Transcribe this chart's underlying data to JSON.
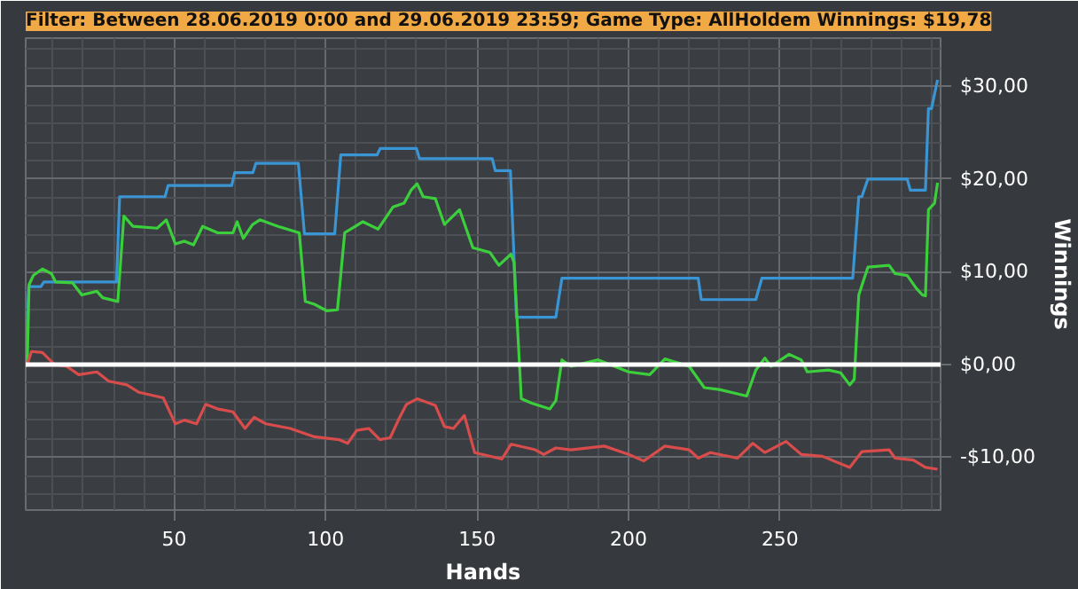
{
  "chart_data": {
    "type": "line",
    "title": "Filter: Between 28.06.2019 0:00 and 29.06.2019 23:59; Game Type: AllHoldem Winnings: $19,78",
    "xlabel": "Hands",
    "ylabel": "Winnings",
    "xlim": [
      1,
      303
    ],
    "xticks": [
      50,
      100,
      150,
      200,
      250
    ],
    "ylim": [
      -15.7,
      35.2
    ],
    "yticks": [
      {
        "value": -10,
        "label": "-$10,00"
      },
      {
        "value": 0,
        "label": "$0,00"
      },
      {
        "value": 10,
        "label": "$10,00"
      },
      {
        "value": 20,
        "label": "$20,00"
      },
      {
        "value": 30,
        "label": "$30,00"
      }
    ],
    "grid": true,
    "ref_lines": [
      {
        "axis": "y",
        "value": 0,
        "color": "#ffffff"
      }
    ],
    "series": [
      {
        "color": "#3a95d5",
        "x": [
          1,
          2,
          6,
          7,
          31,
          32,
          47,
          48,
          69,
          70,
          76,
          77,
          91,
          93,
          103,
          105,
          117,
          118,
          130,
          131,
          155,
          156,
          161,
          163,
          176,
          178,
          223,
          224,
          242,
          244,
          274,
          276,
          277,
          279,
          292,
          293,
          298,
          299,
          300,
          302
        ],
        "values": [
          0,
          8.4,
          8.4,
          8.9,
          8.9,
          18.1,
          18.1,
          19.3,
          19.3,
          20.7,
          20.7,
          21.7,
          21.7,
          14.1,
          14.1,
          22.6,
          22.6,
          23.3,
          23.3,
          22.2,
          22.2,
          20.9,
          20.9,
          5.1,
          5.1,
          9.3,
          9.3,
          7.0,
          7.0,
          9.3,
          9.3,
          18.1,
          18.1,
          20.0,
          20.0,
          18.8,
          18.8,
          27.6,
          27.6,
          30.7
        ]
      },
      {
        "color": "#3ccf3c",
        "x": [
          1.5,
          2.1,
          3.5,
          6.5,
          9.5,
          10.9,
          16.5,
          19.5,
          24.5,
          26.4,
          31.4,
          33.4,
          36.4,
          44.4,
          47.4,
          50.4,
          53.4,
          56.4,
          59.4,
          64.4,
          69.4,
          70.8,
          72.8,
          75.9,
          78.3,
          84.3,
          91.3,
          93.3,
          96.3,
          100.3,
          103.9,
          106.3,
          112.3,
          117.3,
          122.3,
          125.9,
          128.2,
          130.2,
          132.2,
          136.2,
          139.2,
          144.2,
          148.6,
          154.2,
          157.2,
          161.2,
          162.2,
          164.6,
          168.2,
          174,
          176,
          178,
          181,
          190,
          200,
          207,
          212,
          220,
          225,
          230,
          239,
          242,
          245,
          247,
          253,
          257,
          259,
          266,
          270,
          273,
          274.5,
          276,
          279,
          286,
          288,
          292,
          295,
          297,
          298,
          299,
          301,
          302
        ],
        "values": [
          0,
          8.6,
          9.6,
          10.3,
          9.8,
          8.9,
          8.8,
          7.5,
          7.9,
          7.2,
          6.8,
          16.0,
          14.9,
          14.7,
          15.6,
          13.0,
          13.3,
          12.9,
          14.9,
          14.2,
          14.2,
          15.4,
          13.6,
          15.1,
          15.6,
          14.9,
          14.2,
          6.8,
          6.5,
          5.8,
          5.9,
          14.2,
          15.4,
          14.6,
          17.0,
          17.4,
          18.8,
          19.5,
          18.1,
          17.9,
          15.1,
          16.7,
          12.6,
          12.1,
          10.7,
          11.9,
          11.0,
          -3.7,
          -4.2,
          -4.8,
          -3.9,
          0.5,
          -0.2,
          0.5,
          -0.8,
          -1.1,
          0.6,
          -0.2,
          -2.5,
          -2.7,
          -3.4,
          -0.6,
          0.7,
          -0.2,
          1.1,
          0.5,
          -0.8,
          -0.6,
          -0.9,
          -2.2,
          -1.6,
          7.5,
          10.5,
          10.7,
          9.8,
          9.6,
          8.2,
          7.5,
          7.4,
          16.7,
          17.4,
          19.6
        ]
      },
      {
        "color": "#d94c4c",
        "x": [
          1.5,
          2.9,
          6.5,
          10.5,
          14.5,
          18.5,
          24.5,
          28.4,
          34.4,
          38.4,
          46.4,
          50.4,
          53.4,
          57.4,
          60.4,
          64.4,
          69.4,
          73.4,
          76.4,
          80.3,
          88.3,
          96.3,
          104.3,
          107.3,
          110.3,
          114.3,
          117.9,
          121.3,
          124.3,
          126.7,
          130.2,
          136.2,
          139.2,
          142.2,
          145.8,
          149.2,
          158.2,
          161.2,
          169.2,
          172,
          176,
          181,
          192,
          200,
          205,
          212,
          220,
          223,
          227,
          236,
          241,
          245,
          252,
          257,
          264,
          273,
          277,
          286,
          288,
          294,
          298,
          302
        ],
        "values": [
          0,
          1.4,
          1.3,
          0,
          -0.2,
          -1.1,
          -0.8,
          -1.8,
          -2.2,
          -3.0,
          -3.6,
          -6.4,
          -6.0,
          -6.4,
          -4.3,
          -4.8,
          -5.1,
          -6.9,
          -5.7,
          -6.4,
          -6.9,
          -7.8,
          -8.1,
          -8.5,
          -7.1,
          -6.9,
          -8.1,
          -7.9,
          -5.8,
          -4.3,
          -3.7,
          -4.4,
          -6.7,
          -6.9,
          -5.5,
          -9.5,
          -10.2,
          -8.6,
          -9.2,
          -9.7,
          -9.0,
          -9.2,
          -8.8,
          -9.7,
          -10.4,
          -8.8,
          -9.2,
          -10.1,
          -9.5,
          -10.1,
          -8.5,
          -9.5,
          -8.3,
          -9.7,
          -9.9,
          -11.1,
          -9.4,
          -9.2,
          -10.1,
          -10.3,
          -11.1,
          -11.3
        ]
      }
    ]
  }
}
